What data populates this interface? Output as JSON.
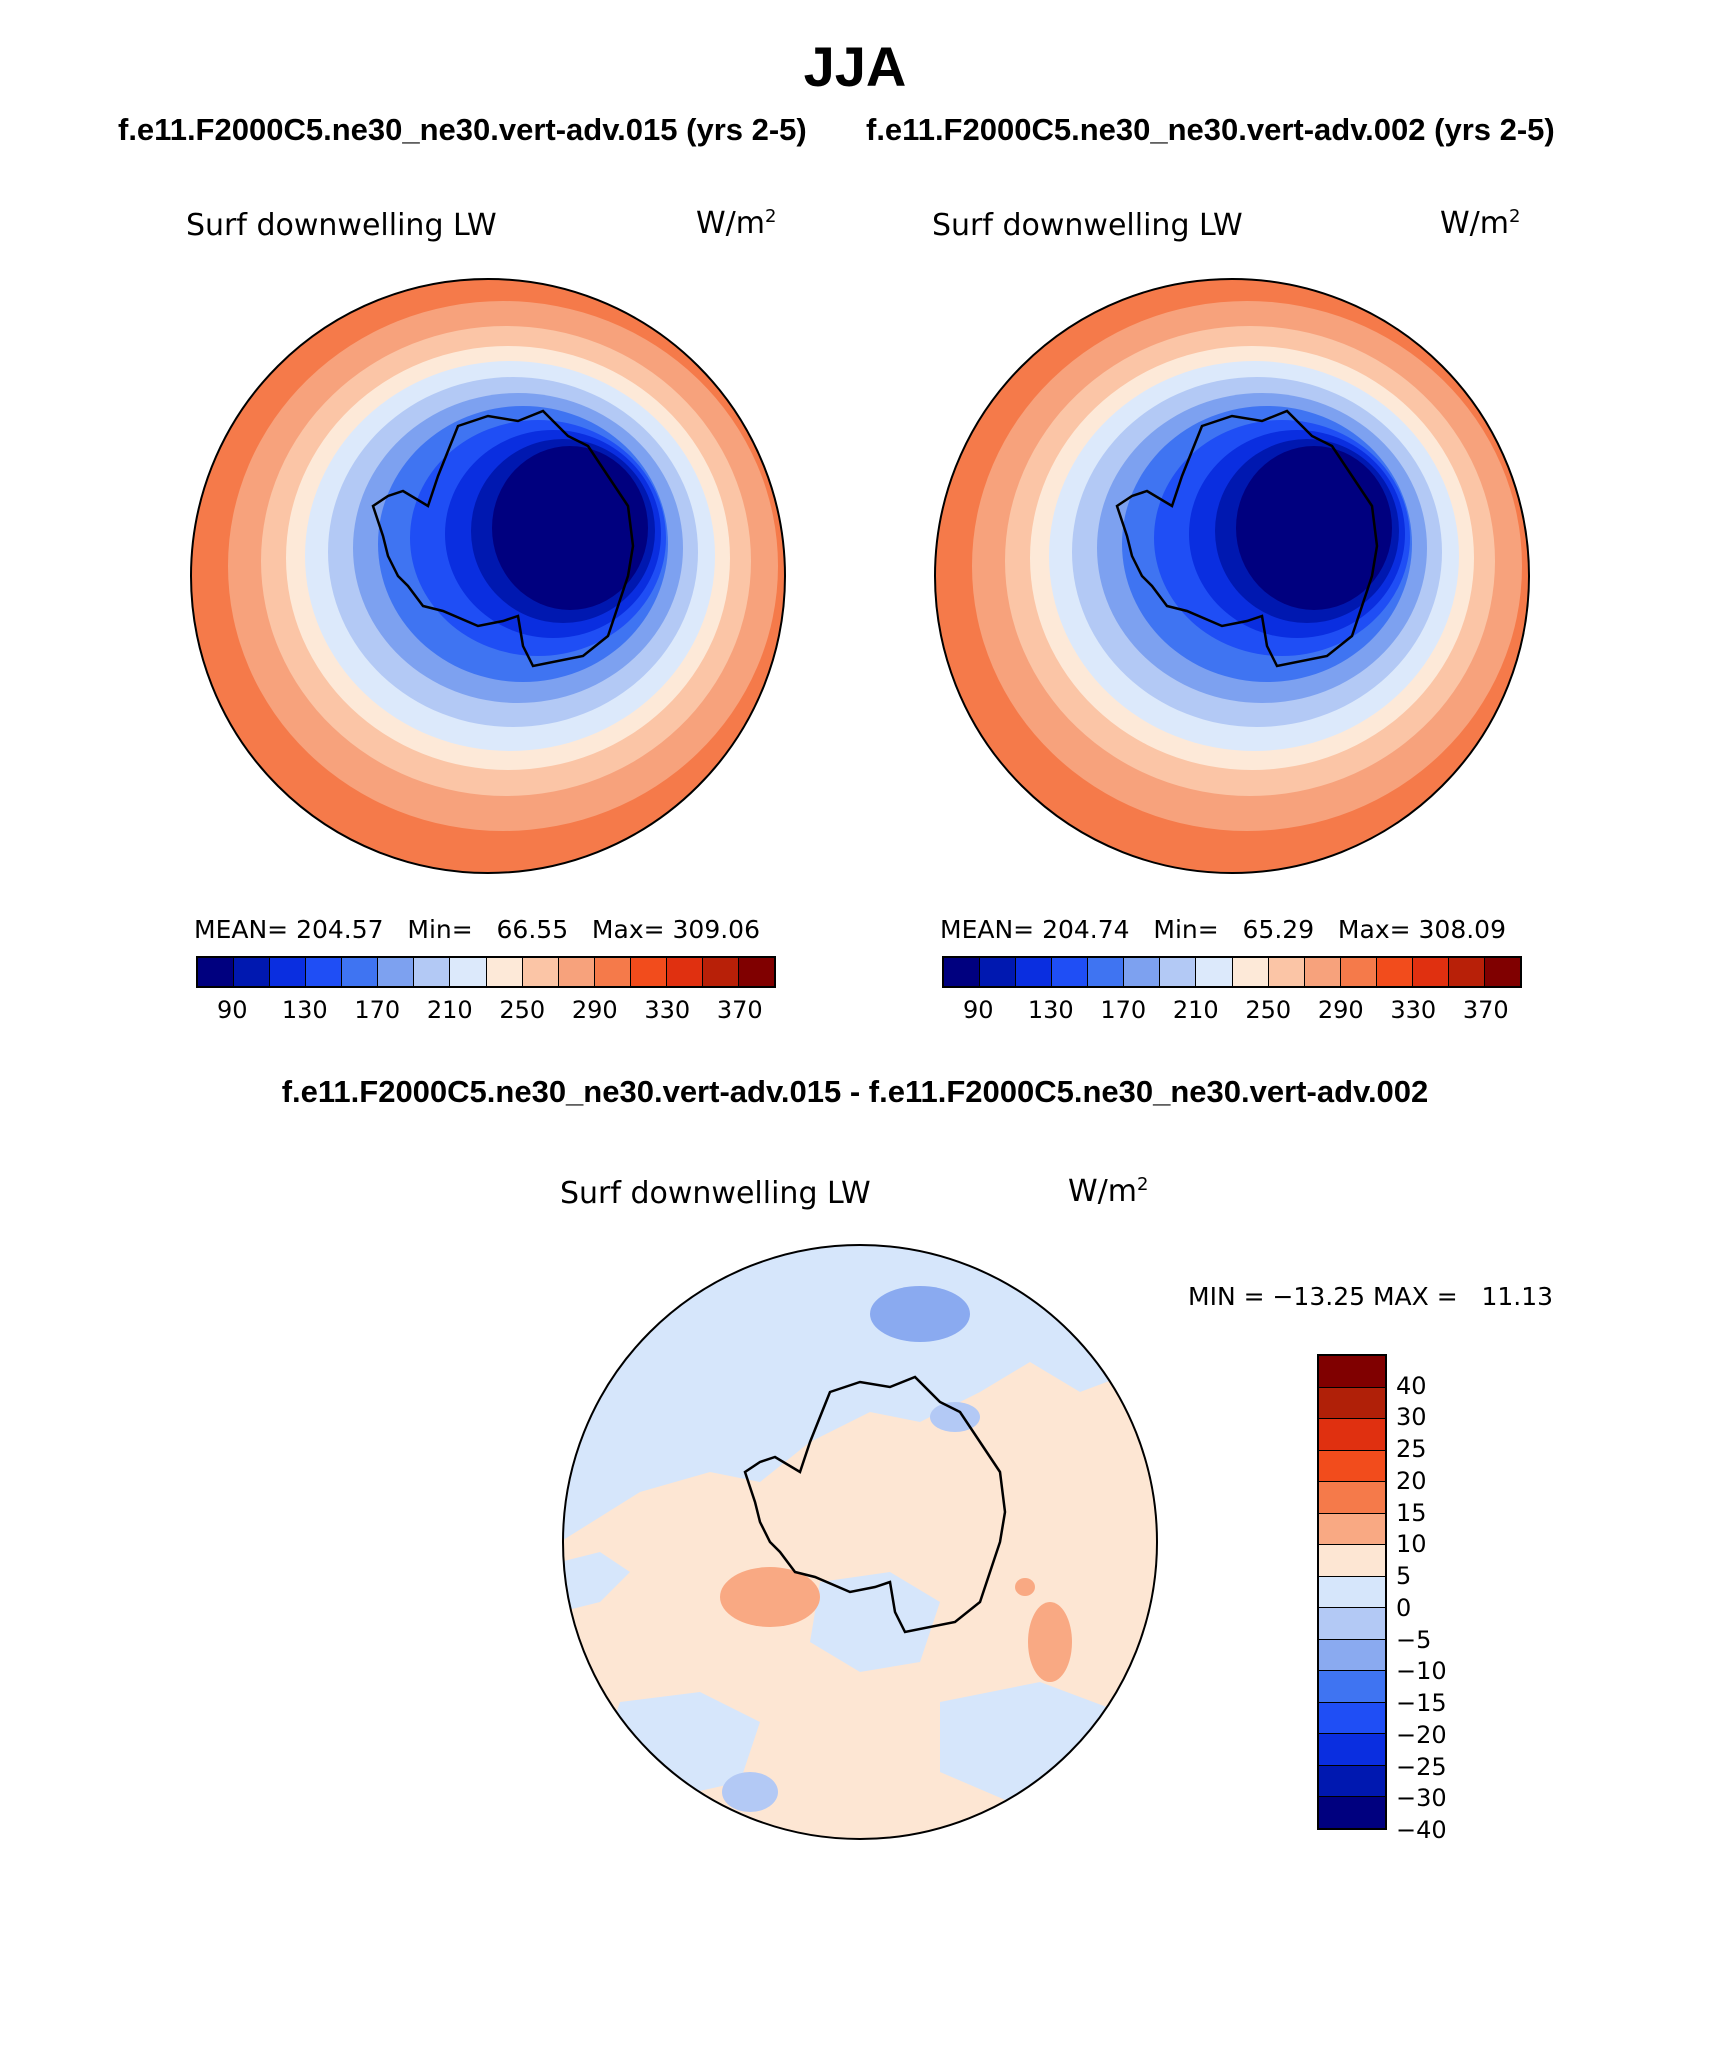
{
  "season": "JJA",
  "case1_title": "f.e11.F2000C5.ne30_ne30.vert-adv.015 (yrs 2-5)",
  "case2_title": "f.e11.F2000C5.ne30_ne30.vert-adv.002 (yrs 2-5)",
  "diff_title": "f.e11.F2000C5.ne30_ne30.vert-adv.015 - f.e11.F2000C5.ne30_ne30.vert-adv.002",
  "panel1": {
    "variable": "Surf downwelling LW",
    "units_base": "W/m",
    "units_exp": "2",
    "stats": "MEAN= 204.57   Min=   66.55   Max= 309.06"
  },
  "panel2": {
    "variable": "Surf downwelling LW",
    "units_base": "W/m",
    "units_exp": "2",
    "stats": "MEAN= 204.74   Min=   65.29   Max= 308.09"
  },
  "panel3": {
    "variable": "Surf downwelling LW",
    "units_base": "W/m",
    "units_exp": "2",
    "stats": "MIN = −13.25 MAX =   11.13"
  },
  "colorbar_abs": {
    "colors": [
      "#00007f",
      "#0018b0",
      "#0a2ee0",
      "#1f4ef5",
      "#3f74f2",
      "#7da1f0",
      "#b3c9f5",
      "#dce9fb",
      "#fde9d8",
      "#fbc5a6",
      "#f7a27c",
      "#f57a4a",
      "#f24c1c",
      "#e03010",
      "#b82008",
      "#800000"
    ],
    "ticks": [
      "90",
      "130",
      "170",
      "210",
      "250",
      "290",
      "330",
      "370"
    ]
  },
  "colorbar_diff": {
    "colors_top_to_bottom": [
      "#800000",
      "#b02008",
      "#e03010",
      "#f24c1c",
      "#f57a4a",
      "#f9a983",
      "#fde6d3",
      "#d6e6fb",
      "#b3c9f5",
      "#8aaaf0",
      "#3f74f2",
      "#1f4ef5",
      "#0a2ee0",
      "#0018b0",
      "#00007f"
    ],
    "ticks": [
      "40",
      "30",
      "25",
      "20",
      "15",
      "10",
      "5",
      "0",
      "−5",
      "−10",
      "−15",
      "−20",
      "−25",
      "−30",
      "−40"
    ]
  }
}
